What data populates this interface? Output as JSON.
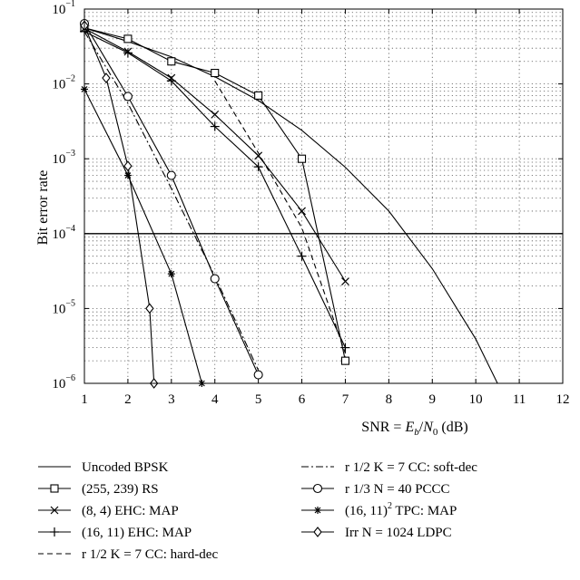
{
  "chart_data": {
    "type": "line",
    "xlabel_parts": {
      "prefix": "SNR = ",
      "var": "E",
      "var_sub": "b",
      "slash": "/",
      "var2": "N",
      "var2_sub": "0",
      "unit": " (dB)"
    },
    "ylabel": "Bit error rate",
    "xlim": [
      1,
      12
    ],
    "ylim": [
      1e-06,
      0.1
    ],
    "yscale": "log",
    "grid": "dotted",
    "legend_position": "below",
    "x_ticks": [
      "1",
      "2",
      "3",
      "4",
      "5",
      "6",
      "7",
      "8",
      "9",
      "10",
      "11",
      "12"
    ],
    "y_ticks": [
      {
        "base": "10",
        "exp": "−1"
      },
      {
        "base": "10",
        "exp": "−2"
      },
      {
        "base": "10",
        "exp": "−3"
      },
      {
        "base": "10",
        "exp": "−4"
      },
      {
        "base": "10",
        "exp": "−5"
      },
      {
        "base": "10",
        "exp": "−6"
      }
    ],
    "reference_line": {
      "y": 0.0001
    },
    "series": [
      {
        "name": "Uncoded BPSK",
        "marker": "none",
        "dash": "solid",
        "x": [
          1,
          2,
          3,
          4,
          5,
          6,
          7,
          8,
          9,
          10,
          10.5
        ],
        "y": [
          0.056,
          0.037,
          0.023,
          0.0125,
          0.006,
          0.0024,
          0.00077,
          0.0002,
          3.4e-05,
          3.9e-06,
          1e-06
        ]
      },
      {
        "name": "(255, 239) RS",
        "marker": "square",
        "dash": "solid",
        "x": [
          1,
          2,
          3,
          4,
          5,
          6,
          7
        ],
        "y": [
          0.056,
          0.04,
          0.02,
          0.014,
          0.007,
          0.001,
          2e-06
        ]
      },
      {
        "name": "(8, 4) EHC: MAP",
        "marker": "x",
        "dash": "solid",
        "x": [
          1,
          2,
          3,
          4,
          5,
          6,
          7
        ],
        "y": [
          0.055,
          0.027,
          0.012,
          0.0039,
          0.0011,
          0.0002,
          2.3e-05
        ]
      },
      {
        "name": "(16, 11) EHC: MAP",
        "marker": "plus",
        "dash": "solid",
        "x": [
          1,
          2,
          3,
          4,
          5,
          6,
          7
        ],
        "y": [
          0.05,
          0.026,
          0.011,
          0.0027,
          0.00078,
          5e-05,
          3e-06
        ]
      },
      {
        "name": "r 1/2 K = 7 CC: hard-dec",
        "marker": "none",
        "dash": "dashed",
        "x": [
          4,
          5,
          6,
          7
        ],
        "y": [
          0.011,
          0.0012,
          0.00012,
          2.5e-06
        ]
      },
      {
        "name": "r 1/2 K = 7 CC: soft-dec",
        "marker": "none",
        "dash": "dashdot",
        "x": [
          1,
          2,
          3,
          4,
          5
        ],
        "y": [
          0.05,
          0.0055,
          0.0004,
          2.7e-05,
          1.5e-06
        ]
      },
      {
        "name": "r 1/3 N = 40 PCCC",
        "marker": "circle",
        "dash": "solid",
        "x": [
          1,
          2,
          3,
          4,
          5
        ],
        "y": [
          0.064,
          0.0068,
          0.0006,
          2.5e-05,
          1.3e-06
        ]
      },
      {
        "name": "(16, 11)² TPC: MAP",
        "marker": "asterisk",
        "dash": "solid",
        "x": [
          1,
          2,
          3,
          3.7
        ],
        "y": [
          0.0085,
          0.0006,
          2.9e-05,
          1e-06
        ]
      },
      {
        "name": "Irr N = 1024 LDPC",
        "marker": "diamond",
        "dash": "solid",
        "x": [
          1,
          1.5,
          2,
          2.5,
          2.6
        ],
        "y": [
          0.06,
          0.012,
          0.0008,
          1e-05,
          1e-06
        ]
      }
    ],
    "legend": {
      "rows": [
        [
          "Uncoded BPSK",
          "r 1/2 K = 7 CC: soft-dec"
        ],
        [
          "(255, 239) RS",
          "r 1/3 N = 40 PCCC"
        ],
        [
          "(8, 4) EHC: MAP",
          "(16, 11)² TPC: MAP"
        ],
        [
          "(16, 11) EHC: MAP",
          "Irr N = 1024 LDPC"
        ],
        [
          "r 1/2 K = 7 CC: hard-dec"
        ]
      ]
    }
  }
}
